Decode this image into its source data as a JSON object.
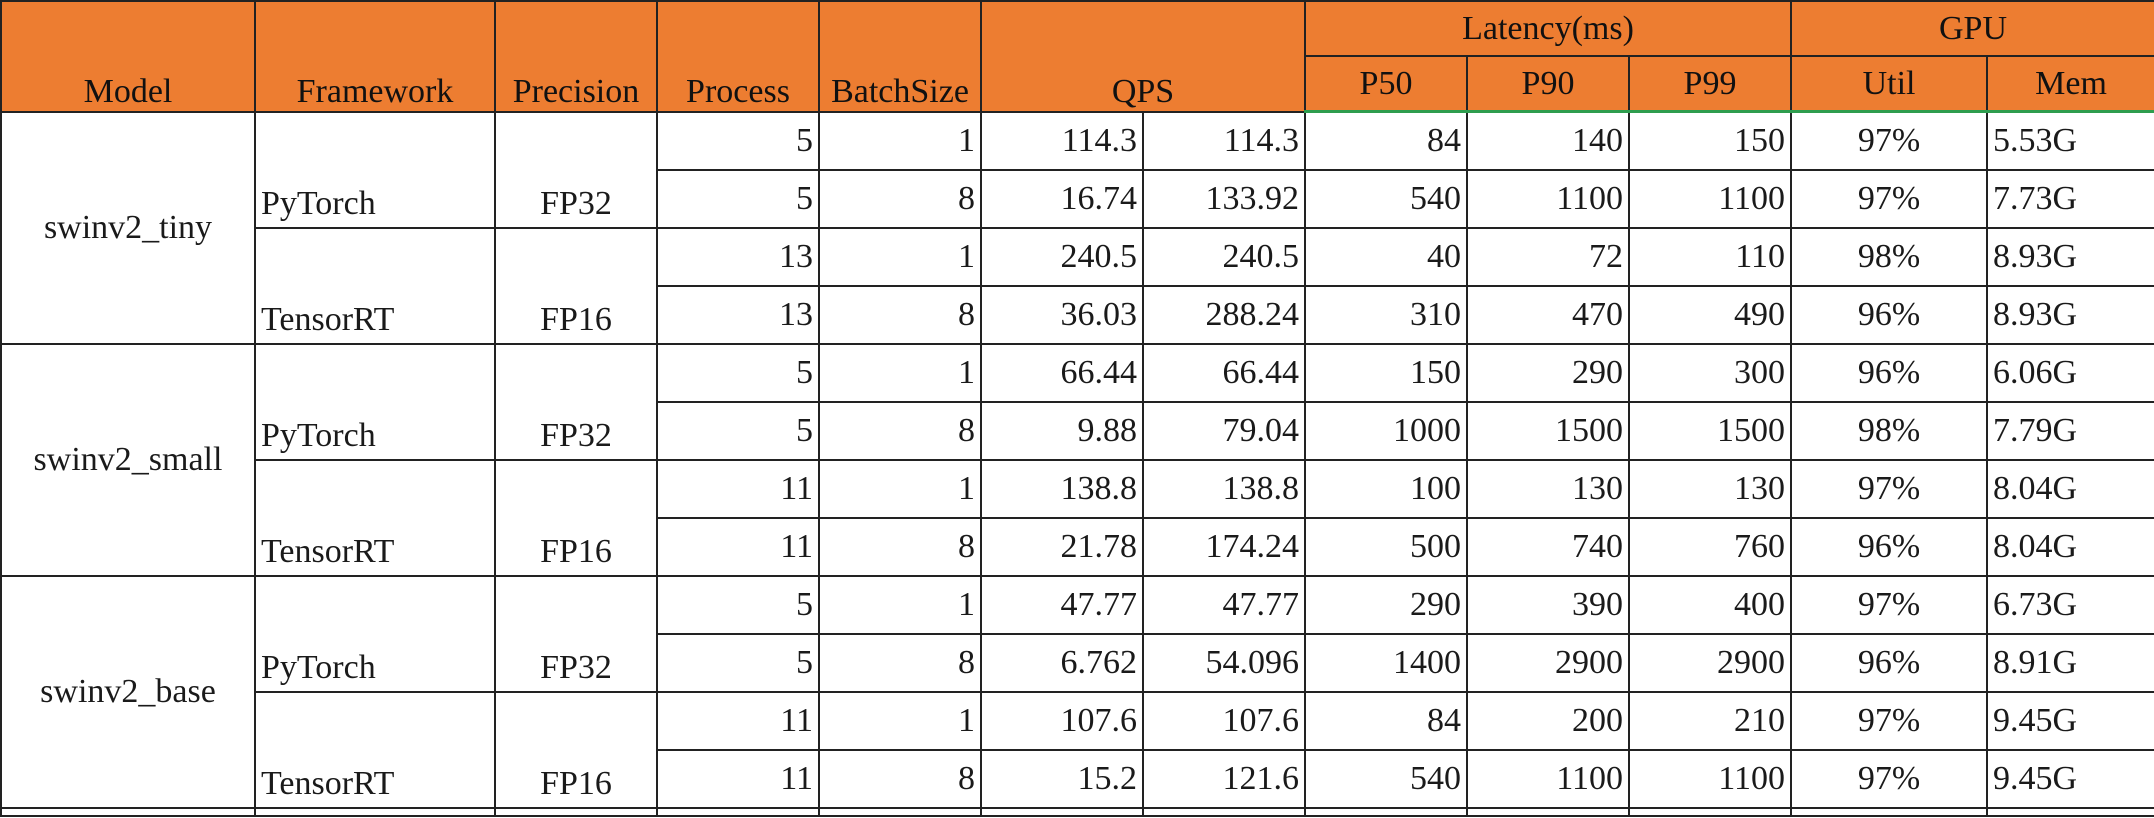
{
  "header": {
    "model": "Model",
    "framework": "Framework",
    "precision": "Precision",
    "process": "Process",
    "batchsize": "BatchSize",
    "qps": "QPS",
    "latency": "Latency(ms)",
    "p50": "P50",
    "p90": "P90",
    "p99": "P99",
    "gpu": "GPU",
    "util": "Util",
    "mem": "Mem"
  },
  "colors": {
    "header_bg": "#ed7d31",
    "header_rule": "#2e9d4e"
  },
  "models": [
    {
      "name": "swinv2_tiny",
      "groups": [
        {
          "framework": "PyTorch",
          "precision": "FP32",
          "rows": [
            {
              "process": "5",
              "batch": "1",
              "qps": "114.3",
              "qps_total": "114.3",
              "p50": "84",
              "p90": "140",
              "p99": "150",
              "util": "97%",
              "mem": "5.53G"
            },
            {
              "process": "5",
              "batch": "8",
              "qps": "16.74",
              "qps_total": "133.92",
              "p50": "540",
              "p90": "1100",
              "p99": "1100",
              "util": "97%",
              "mem": "7.73G"
            }
          ]
        },
        {
          "framework": "TensorRT",
          "precision": "FP16",
          "rows": [
            {
              "process": "13",
              "batch": "1",
              "qps": "240.5",
              "qps_total": "240.5",
              "p50": "40",
              "p90": "72",
              "p99": "110",
              "util": "98%",
              "mem": "8.93G"
            },
            {
              "process": "13",
              "batch": "8",
              "qps": "36.03",
              "qps_total": "288.24",
              "p50": "310",
              "p90": "470",
              "p99": "490",
              "util": "96%",
              "mem": "8.93G"
            }
          ]
        }
      ]
    },
    {
      "name": "swinv2_small",
      "groups": [
        {
          "framework": "PyTorch",
          "precision": "FP32",
          "rows": [
            {
              "process": "5",
              "batch": "1",
              "qps": "66.44",
              "qps_total": "66.44",
              "p50": "150",
              "p90": "290",
              "p99": "300",
              "util": "96%",
              "mem": "6.06G"
            },
            {
              "process": "5",
              "batch": "8",
              "qps": "9.88",
              "qps_total": "79.04",
              "p50": "1000",
              "p90": "1500",
              "p99": "1500",
              "util": "98%",
              "mem": "7.79G"
            }
          ]
        },
        {
          "framework": "TensorRT",
          "precision": "FP16",
          "rows": [
            {
              "process": "11",
              "batch": "1",
              "qps": "138.8",
              "qps_total": "138.8",
              "p50": "100",
              "p90": "130",
              "p99": "130",
              "util": "97%",
              "mem": "8.04G"
            },
            {
              "process": "11",
              "batch": "8",
              "qps": "21.78",
              "qps_total": "174.24",
              "p50": "500",
              "p90": "740",
              "p99": "760",
              "util": "96%",
              "mem": "8.04G"
            }
          ]
        }
      ]
    },
    {
      "name": "swinv2_base",
      "groups": [
        {
          "framework": "PyTorch",
          "precision": "FP32",
          "rows": [
            {
              "process": "5",
              "batch": "1",
              "qps": "47.77",
              "qps_total": "47.77",
              "p50": "290",
              "p90": "390",
              "p99": "400",
              "util": "97%",
              "mem": "6.73G"
            },
            {
              "process": "5",
              "batch": "8",
              "qps": "6.762",
              "qps_total": "54.096",
              "p50": "1400",
              "p90": "2900",
              "p99": "2900",
              "util": "96%",
              "mem": "8.91G"
            }
          ]
        },
        {
          "framework": "TensorRT",
          "precision": "FP16",
          "rows": [
            {
              "process": "11",
              "batch": "1",
              "qps": "107.6",
              "qps_total": "107.6",
              "p50": "84",
              "p90": "200",
              "p99": "210",
              "util": "97%",
              "mem": "9.45G"
            },
            {
              "process": "11",
              "batch": "8",
              "qps": "15.2",
              "qps_total": "121.6",
              "p50": "540",
              "p90": "1100",
              "p99": "1100",
              "util": "97%",
              "mem": "9.45G"
            }
          ]
        }
      ]
    }
  ]
}
